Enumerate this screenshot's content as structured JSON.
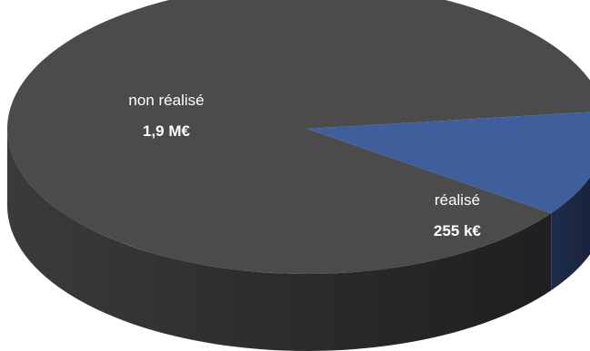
{
  "chart_data": {
    "type": "pie",
    "style": "3d",
    "slices": [
      {
        "label": "non réalisé",
        "value_label": "1,9 M€",
        "value": 1900,
        "color": "#4b4b4b",
        "side_color": "#2f2f2f"
      },
      {
        "label": "réalisé",
        "value_label": "255 k€",
        "value": 255,
        "color": "#3f5f9c",
        "side_color": "#1d2a45"
      }
    ],
    "unit": "k€"
  }
}
